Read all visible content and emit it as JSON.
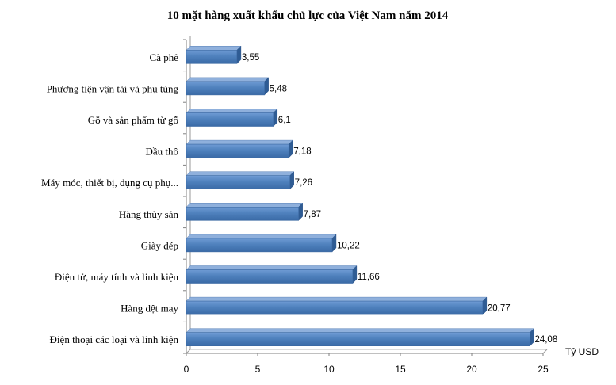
{
  "chart_data": {
    "type": "bar",
    "orientation": "horizontal",
    "title": "10 mặt hàng xuất khẩu chủ lực của Việt Nam năm 2014",
    "xlabel": "",
    "x_unit_label": "Tỷ USD",
    "ylabel": "",
    "xlim": [
      0,
      25
    ],
    "x_ticks": [
      "0",
      "5",
      "10",
      "15",
      "20",
      "25"
    ],
    "grid": false,
    "categories": [
      "Cà phê",
      "Phương tiện vận tải và phụ tùng",
      "Gỗ và sản phẩm từ gỗ",
      "Dầu thô",
      "Máy móc, thiết bị, dụng cụ phụ...",
      "Hàng thủy sản",
      "Giày dép",
      "Điện tử, máy tính và linh kiện",
      "Hàng dệt may",
      "Điện thoại các loại và linh kiện"
    ],
    "values": [
      3.55,
      5.48,
      6.1,
      7.18,
      7.26,
      7.87,
      10.22,
      11.66,
      20.77,
      24.08
    ],
    "value_labels": [
      "3,55",
      "5,48",
      "6,1",
      "7,18",
      "7,26",
      "7,87",
      "10,22",
      "11,66",
      "20,77",
      "24,08"
    ],
    "bar_color": "#4a7ebb"
  }
}
